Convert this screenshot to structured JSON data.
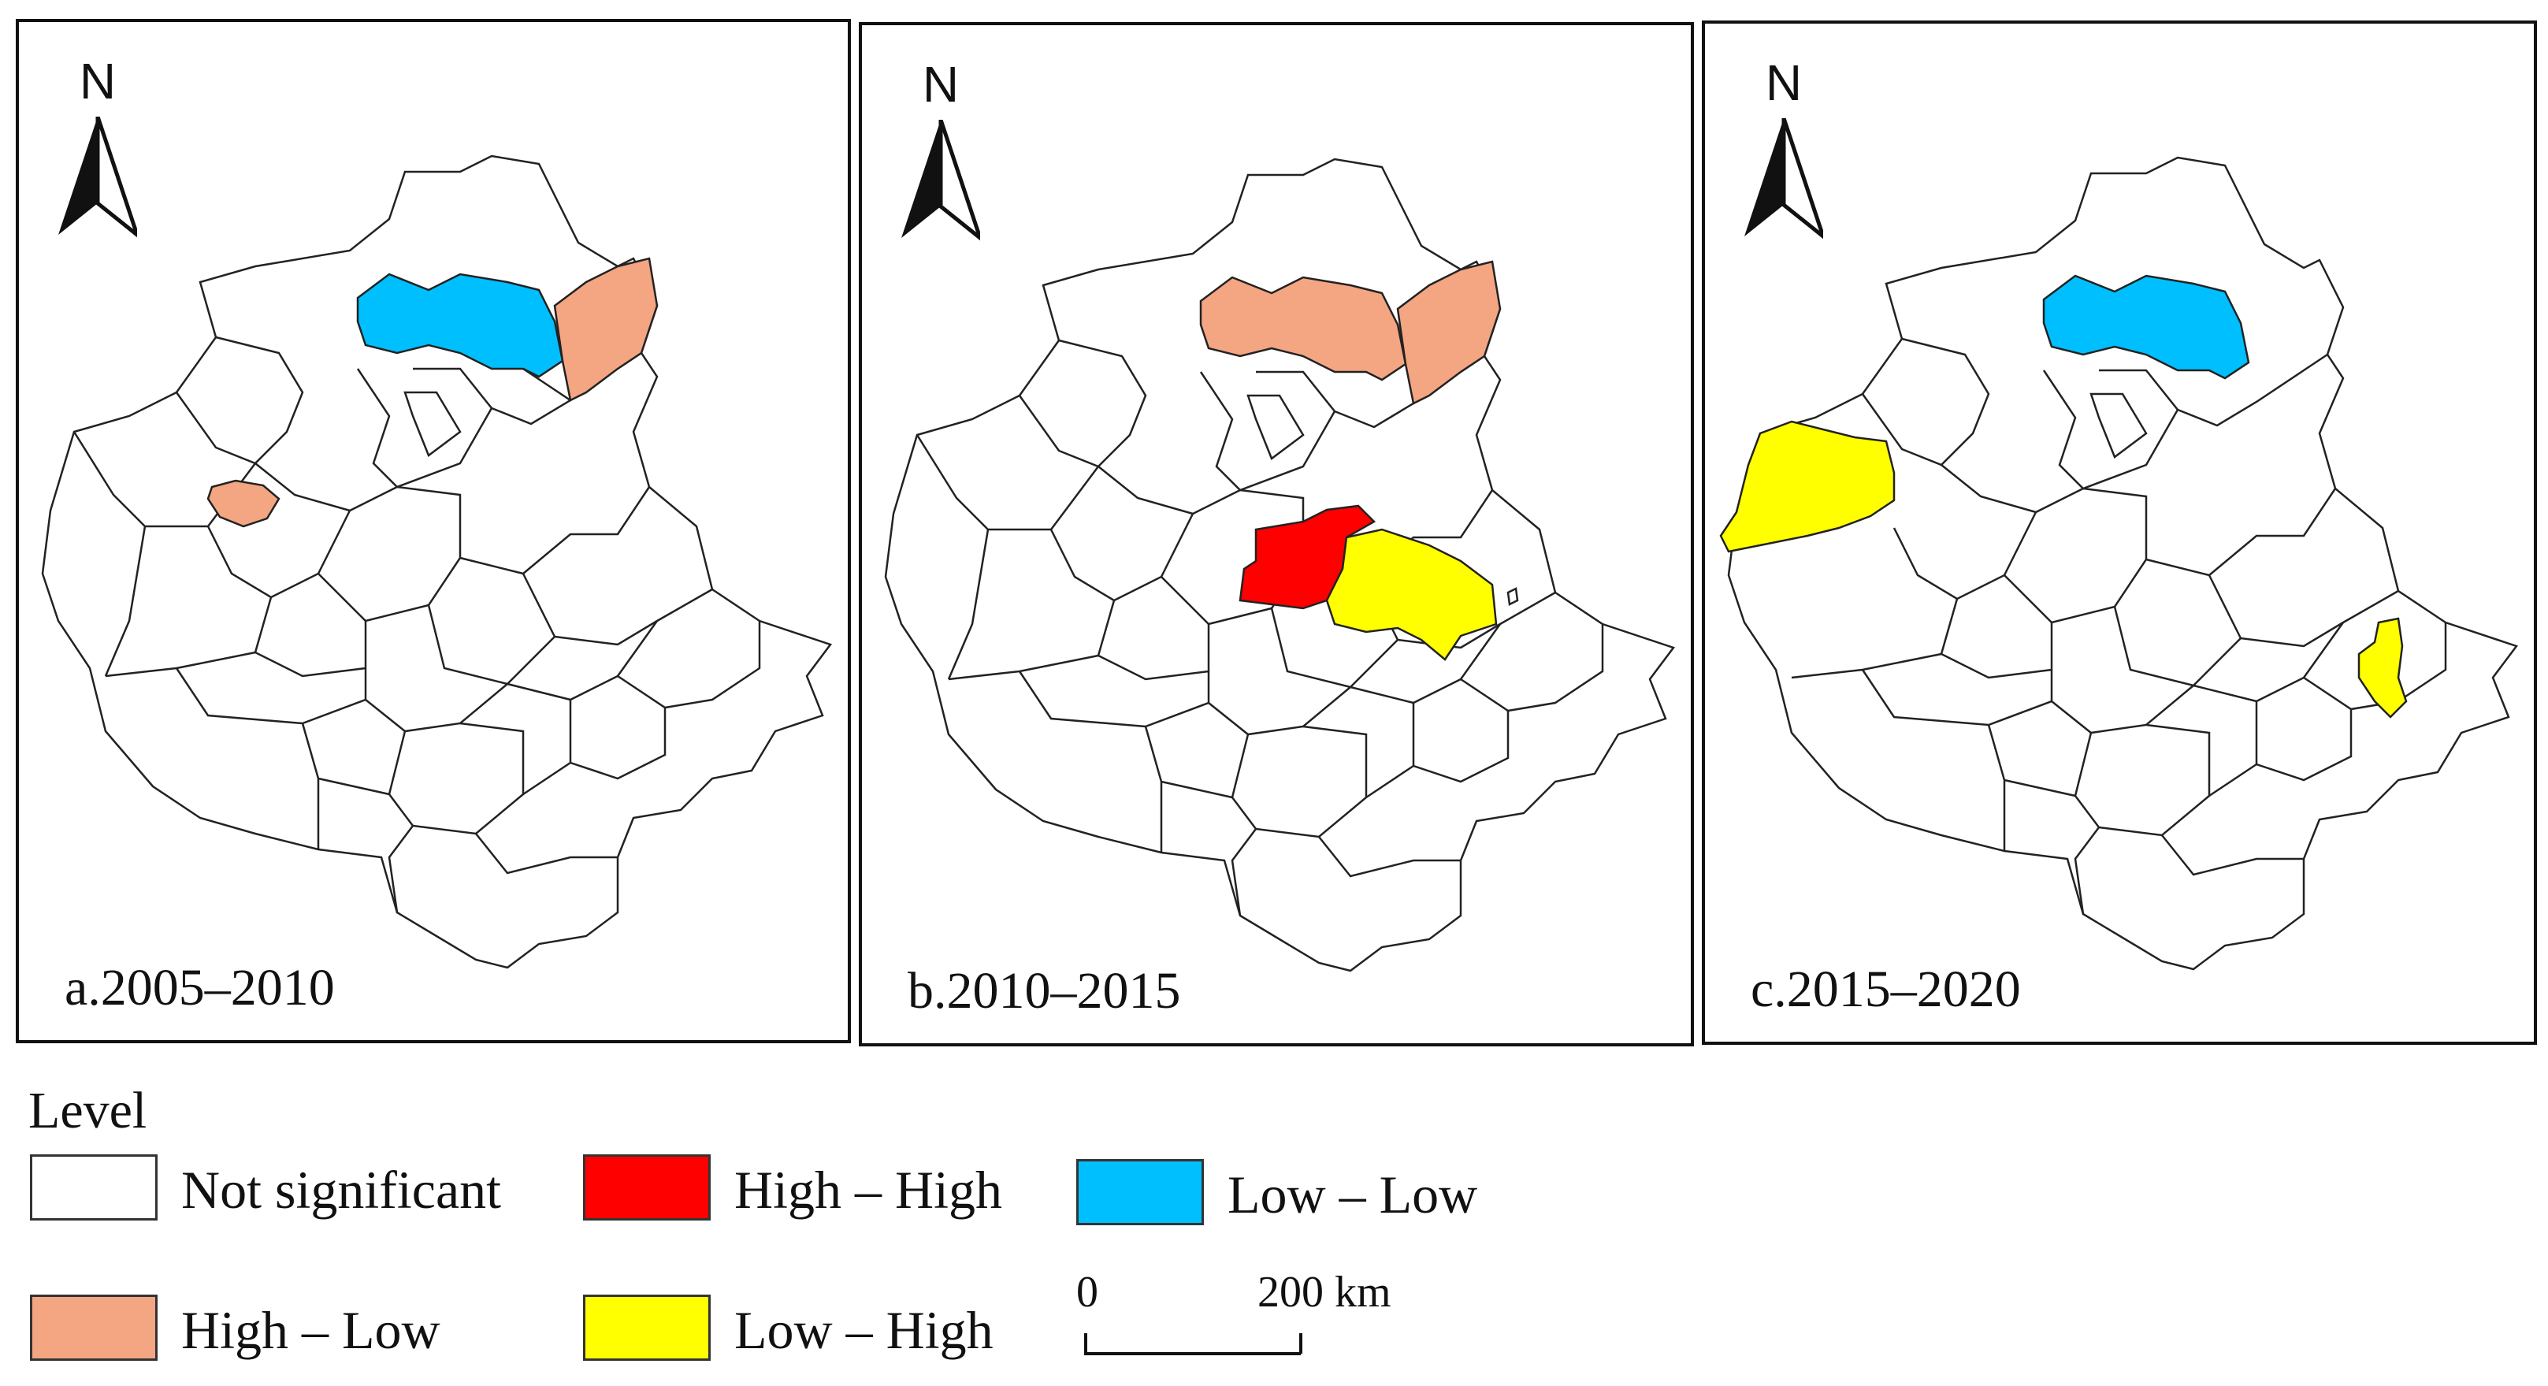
{
  "north_label": "N",
  "panels": [
    {
      "label": "a.2005–2010",
      "highlights": [
        {
          "region": "north-central",
          "class": "Low – Low"
        },
        {
          "region": "north-east",
          "class": "High – Low"
        },
        {
          "region": "west-small",
          "class": "High – Low"
        }
      ]
    },
    {
      "label": "b.2010–2015",
      "highlights": [
        {
          "region": "north-central",
          "class": "High – Low"
        },
        {
          "region": "north-east",
          "class": "High – Low"
        },
        {
          "region": "center",
          "class": "High – High"
        },
        {
          "region": "center-east",
          "class": "Low – High"
        }
      ]
    },
    {
      "label": "c.2015–2020",
      "highlights": [
        {
          "region": "north-central",
          "class": "Low – Low"
        },
        {
          "region": "west",
          "class": "Low – High"
        },
        {
          "region": "east-small",
          "class": "Low – High"
        }
      ]
    }
  ],
  "legend": {
    "title": "Level",
    "items": [
      {
        "label": "Not significant",
        "color": "#ffffff"
      },
      {
        "label": "High – High",
        "color": "#ff0000"
      },
      {
        "label": "Low – Low",
        "color": "#00bfff"
      },
      {
        "label": "High – Low",
        "color": "#f4a582"
      },
      {
        "label": "Low – High",
        "color": "#ffff00"
      }
    ]
  },
  "scale": {
    "start": "0",
    "end": "200 km"
  }
}
